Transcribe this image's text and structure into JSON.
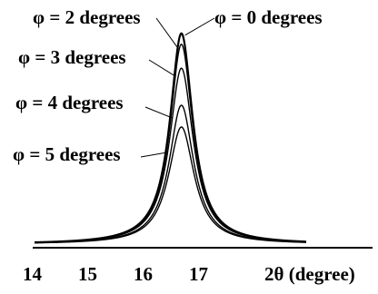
{
  "chart_data": {
    "type": "line",
    "xlabel": "2θ (degree)",
    "ylabel": "",
    "xlim": [
      14,
      19
    ],
    "ylim": [
      0,
      1
    ],
    "x_ticks": [
      "14",
      "15",
      "16",
      "17"
    ],
    "grid": false,
    "peak_center": 16.65,
    "series": [
      {
        "name": "φ = 0 degrees",
        "peak_height": 0.98,
        "hwhm": 0.25,
        "baseline": 0.012
      },
      {
        "name": "φ = 2 degrees",
        "peak_height": 0.93,
        "hwhm": 0.25,
        "baseline": 0.012
      },
      {
        "name": "φ = 3 degrees",
        "peak_height": 0.82,
        "hwhm": 0.26,
        "baseline": 0.012
      },
      {
        "name": "φ = 4 degrees",
        "peak_height": 0.65,
        "hwhm": 0.27,
        "baseline": 0.012
      },
      {
        "name": "φ = 5 degrees",
        "peak_height": 0.55,
        "hwhm": 0.28,
        "baseline": 0.012
      }
    ]
  }
}
